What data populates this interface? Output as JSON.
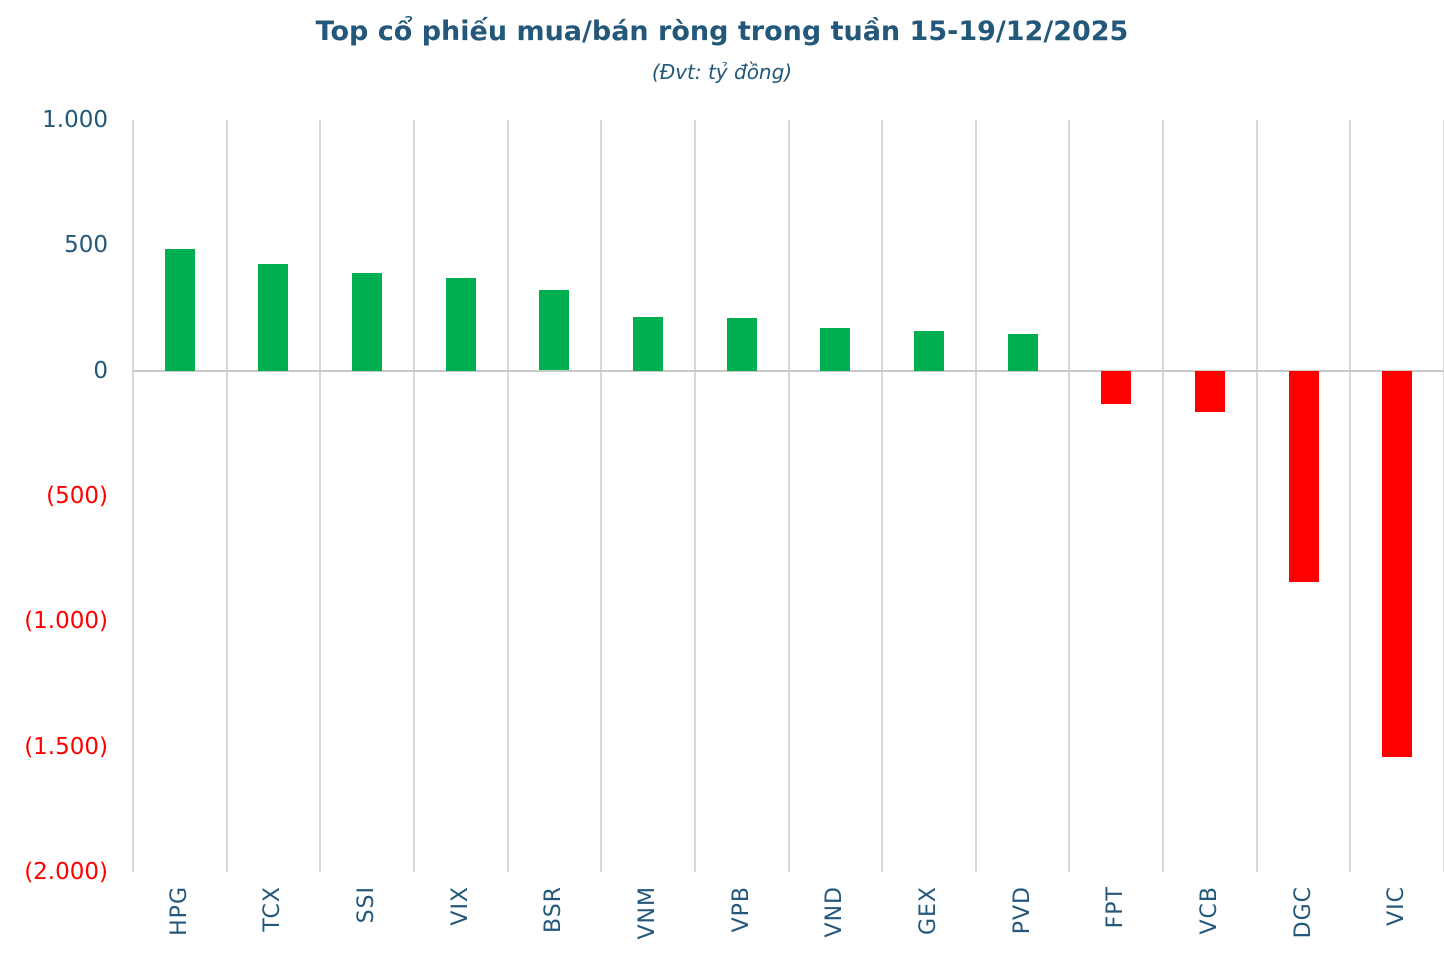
{
  "chart": {
    "title": "Top cổ phiếu mua/bán ròng trong tuần 15-19/12/2025",
    "subtitle": "(Đvt: tỷ đồng)"
  },
  "chart_data": {
    "type": "bar",
    "title": "Top cổ phiếu mua/bán ròng trong tuần 15-19/12/2025",
    "subtitle": "(Đvt: tỷ đồng)",
    "unit": "tỷ đồng",
    "categories": [
      "HPG",
      "TCX",
      "SSI",
      "VIX",
      "BSR",
      "VNM",
      "VPB",
      "VND",
      "GEX",
      "PVD",
      "FPT",
      "VCB",
      "DGC",
      "VIC"
    ],
    "values": [
      485,
      425,
      390,
      370,
      320,
      215,
      210,
      172,
      160,
      147,
      -130,
      -162,
      -840,
      -1540
    ],
    "xlabel": "",
    "ylabel": "",
    "ylim": [
      -2000,
      1000
    ],
    "ytick_interval": 500,
    "yticks": [
      {
        "value": 1000,
        "label": "1.000"
      },
      {
        "value": 500,
        "label": "500"
      },
      {
        "value": 0,
        "label": "0"
      },
      {
        "value": -500,
        "label": "(500)"
      },
      {
        "value": -1000,
        "label": "(1.000)"
      },
      {
        "value": -1500,
        "label": "(1.500)"
      },
      {
        "value": -2000,
        "label": "(2.000)"
      }
    ],
    "legend": "none",
    "grid": "vertical category separators only, horizontal axis line at zero",
    "x_label_rotation": "90deg counterclockwise, reading bottom to top",
    "colors": {
      "positive_bar": "#00B050",
      "negative_bar": "#FF0000",
      "title_text": "#23587B",
      "axis_label_positive": "#23587B",
      "axis_label_negative": "#FF0000",
      "gridline": "#D9D9D9",
      "zero_line": "#C9C9C9",
      "background": "#FFFFFF"
    }
  }
}
